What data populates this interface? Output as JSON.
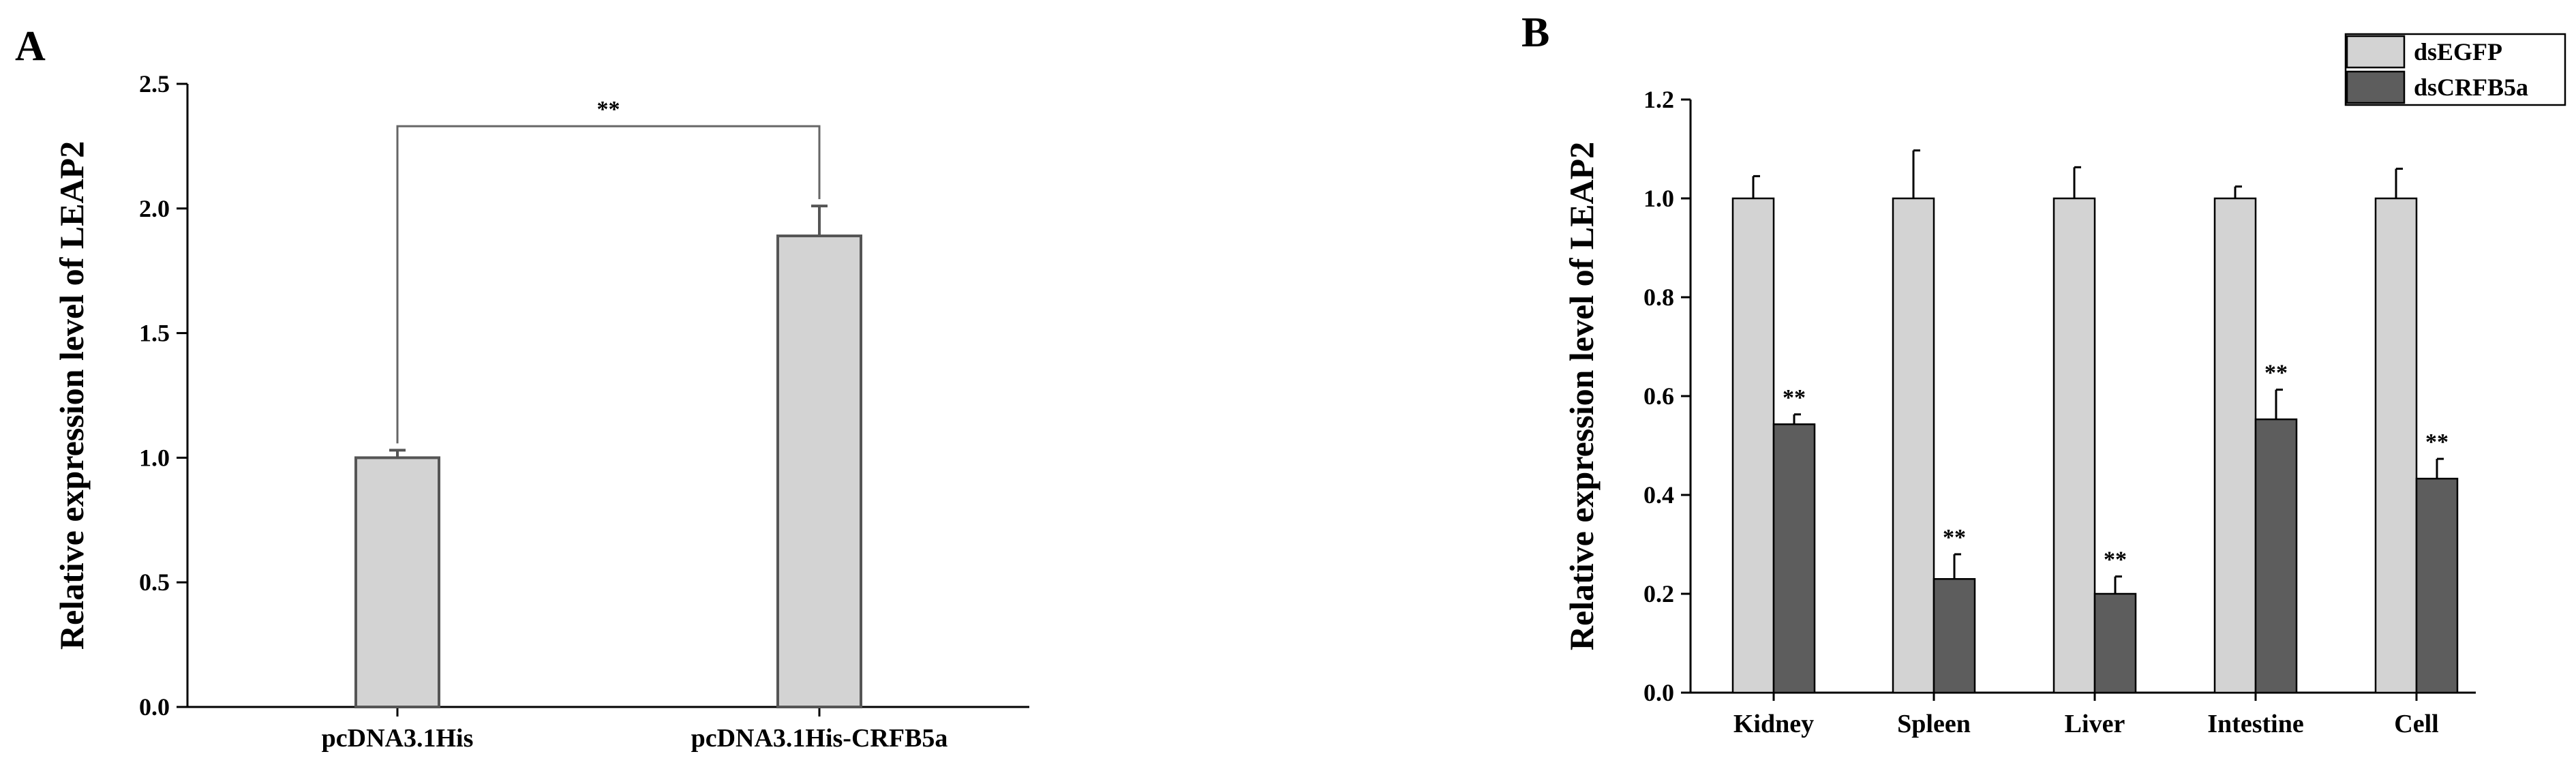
{
  "colors": {
    "light_bar": "#d3d3d3",
    "dark_bar": "#5d5d5d",
    "axis": "#000000",
    "bar_edge_a": "#555555"
  },
  "chart_data": [
    {
      "panel": "A",
      "type": "bar",
      "ylabel": "Relative expression level of LEAP2",
      "xlabel": "",
      "ylim": [
        0,
        2.5
      ],
      "yticks": [
        "0.0",
        "0.5",
        "1.0",
        "1.5",
        "2.0",
        "2.5"
      ],
      "categories": [
        "pcDNA3.1His",
        "pcDNA3.1His-CRFB5a"
      ],
      "values": [
        1.0,
        1.89
      ],
      "errors": [
        0.03,
        0.12
      ],
      "significance": {
        "between": [
          0,
          1
        ],
        "label": "**",
        "y": 2.33
      },
      "grid": false
    },
    {
      "panel": "B",
      "type": "bar",
      "ylabel": "Relative expression level of LEAP2",
      "xlabel": "",
      "ylim": [
        0,
        1.2
      ],
      "yticks": [
        "0.0",
        "0.2",
        "0.4",
        "0.6",
        "0.8",
        "1.0",
        "1.2"
      ],
      "categories": [
        "Kidney",
        "Spleen",
        "Liver",
        "Intestine",
        "Cell"
      ],
      "series": [
        {
          "name": "dsEGFP",
          "values": [
            1.0,
            1.0,
            1.0,
            1.0,
            1.0
          ],
          "errors": [
            0.045,
            0.097,
            0.063,
            0.024,
            0.06
          ]
        },
        {
          "name": "dsCRFB5a",
          "values": [
            0.543,
            0.23,
            0.2,
            0.553,
            0.433
          ],
          "errors": [
            0.02,
            0.05,
            0.035,
            0.06,
            0.04
          ],
          "labels": [
            "**",
            "**",
            "**",
            "**",
            "**"
          ]
        }
      ],
      "legend": "top-right",
      "grid": false
    }
  ]
}
